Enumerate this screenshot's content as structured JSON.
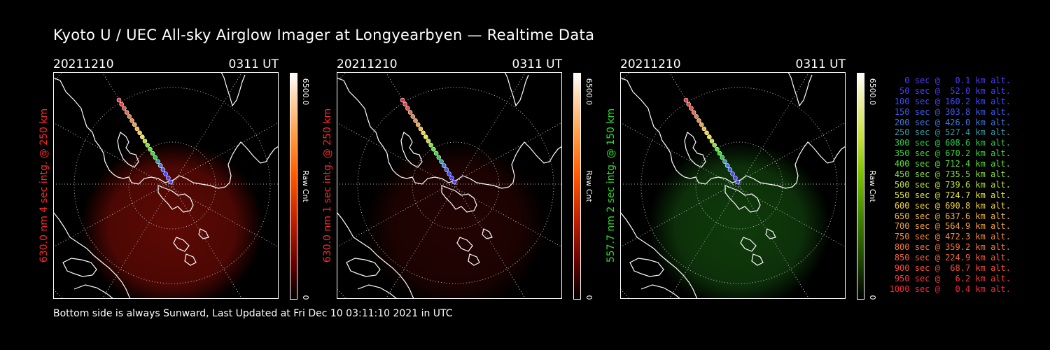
{
  "title": "Kyoto U / UEC All-sky Airglow Imager at Longyearbyen — Realtime Data",
  "footer": "Bottom side is always Sunward, Last Updated at Fri Dec 10 03:11:10 2021 in UTC",
  "panels": [
    {
      "date": "20211210",
      "time": "0311 UT",
      "ylabel": "630.0 nm 4 sec intg. @ 250 km",
      "ylabel_color": "#ff2a2a",
      "colorbar_max": "6500.0",
      "colorbar_min": "0",
      "colorbar_unit": "Raw Cnt",
      "colormap": "red",
      "airglow_intensity": 0.85
    },
    {
      "date": "20211210",
      "time": "0311 UT",
      "ylabel": "630.0 nm 1 sec intg. @ 250 km",
      "ylabel_color": "#ff2a2a",
      "colorbar_max": "6500.0",
      "colorbar_min": "0",
      "colorbar_unit": "Raw Cnt",
      "colormap": "red",
      "airglow_intensity": 0.3
    },
    {
      "date": "20211210",
      "time": "0311 UT",
      "ylabel": "557.7 nm 2 sec intg. @ 150 km",
      "ylabel_color": "#2adf2a",
      "colorbar_max": "6500.0",
      "colorbar_min": "0",
      "colorbar_unit": "Raw Cnt",
      "colormap": "green",
      "airglow_intensity": 0.7
    }
  ],
  "trajectory_legend": [
    {
      "text": "0 sec @   0.1 km alt.",
      "color": "#4a3cff"
    },
    {
      "text": "50 sec @  52.0 km alt.",
      "color": "#4a3cff"
    },
    {
      "text": "100 sec @ 160.2 km alt.",
      "color": "#3c4cff"
    },
    {
      "text": "150 sec @ 303.8 km alt.",
      "color": "#3a5cf0"
    },
    {
      "text": "200 sec @ 426.0 km alt.",
      "color": "#3a7ae0"
    },
    {
      "text": "250 sec @ 527.4 km alt.",
      "color": "#3a9aa8"
    },
    {
      "text": "300 sec @ 608.6 km alt.",
      "color": "#2ec84e"
    },
    {
      "text": "350 sec @ 670.2 km alt.",
      "color": "#3ad83a"
    },
    {
      "text": "400 sec @ 712.4 km alt.",
      "color": "#5ae03a"
    },
    {
      "text": "450 sec @ 735.5 km alt.",
      "color": "#8ae03a"
    },
    {
      "text": "500 sec @ 739.6 km alt.",
      "color": "#bae03a"
    },
    {
      "text": "550 sec @ 724.7 km alt.",
      "color": "#e8e83a"
    },
    {
      "text": "600 sec @ 690.8 km alt.",
      "color": "#f5d23a"
    },
    {
      "text": "650 sec @ 637.6 km alt.",
      "color": "#f5b83a"
    },
    {
      "text": "700 sec @ 564.9 km alt.",
      "color": "#f5a23a"
    },
    {
      "text": "750 sec @ 472.3 km alt.",
      "color": "#f58c3a"
    },
    {
      "text": "800 sec @ 359.2 km alt.",
      "color": "#f5783a"
    },
    {
      "text": "850 sec @ 224.9 km alt.",
      "color": "#f5643a"
    },
    {
      "text": "900 sec @  68.7 km alt.",
      "color": "#f5503a"
    },
    {
      "text": "950 sec @   6.2 km alt.",
      "color": "#f53c3a"
    },
    {
      "text": "1000 sec @   0.4 km alt.",
      "color": "#f5283a"
    }
  ]
}
